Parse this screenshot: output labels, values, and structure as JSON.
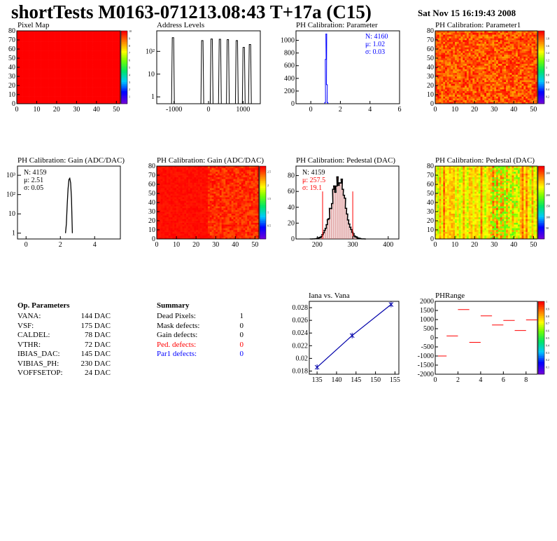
{
  "header": {
    "title": "shortTests M0163-071213.08:43 T+17a (C15)",
    "date": "Sat Nov 15 16:19:43 2008"
  },
  "op_parameters": {
    "title": "Op. Parameters",
    "rows": [
      {
        "name": "VANA:",
        "value": "144 DAC"
      },
      {
        "name": "VSF:",
        "value": "175 DAC"
      },
      {
        "name": "CALDEL:",
        "value": "78 DAC"
      },
      {
        "name": "VTHR:",
        "value": "72 DAC"
      },
      {
        "name": "IBIAS_DAC:",
        "value": "145 DAC"
      },
      {
        "name": "VIBIAS_PH:",
        "value": "230 DAC"
      },
      {
        "name": "VOFFSETOP:",
        "value": "24 DAC"
      }
    ]
  },
  "summary": {
    "title": "Summary",
    "rows": [
      {
        "name": "Dead Pixels:",
        "value": "1",
        "color": "#000000"
      },
      {
        "name": "Mask defects:",
        "value": "0",
        "color": "#000000"
      },
      {
        "name": "Gain defects:",
        "value": "0",
        "color": "#000000"
      },
      {
        "name": "Ped. defects:",
        "value": "0",
        "color": "#ff0000"
      },
      {
        "name": "Par1 defects:",
        "value": "0",
        "color": "#0000ff"
      }
    ]
  },
  "chart_data": [
    {
      "id": "pixel-map",
      "type": "heatmap",
      "title": "Pixel Map",
      "xlim": [
        0,
        52
      ],
      "ylim": [
        0,
        80
      ],
      "xticks": [
        "0",
        "10",
        "20",
        "30",
        "40",
        "50"
      ],
      "yticks": [
        "0",
        "10",
        "20",
        "30",
        "40",
        "50",
        "60",
        "70",
        "80"
      ],
      "fill": "uniform",
      "color": "#ff0000",
      "palette_ticks": [
        "1",
        "2",
        "3",
        "4",
        "5",
        "6",
        "7",
        "8",
        "9",
        "10"
      ],
      "palette_max": 10
    },
    {
      "id": "address-levels",
      "type": "bar",
      "title": "Address Levels",
      "xlim": [
        -1500,
        1500
      ],
      "ylog": true,
      "ylim": [
        0.5,
        800
      ],
      "xticks": [
        {
          "v": -1000,
          "t": "-1000"
        },
        {
          "v": 0,
          "t": "0"
        },
        {
          "v": 1000,
          "t": "1000"
        }
      ],
      "yticks": [
        {
          "v": 1,
          "t": "1"
        },
        {
          "v": 10,
          "t": "10"
        },
        {
          "v": 100,
          "t": "10²"
        }
      ],
      "peaks": [
        {
          "x": -1030,
          "h": 400
        },
        {
          "x": -180,
          "h": 300
        },
        {
          "x": 90,
          "h": 350
        },
        {
          "x": 330,
          "h": 340
        },
        {
          "x": 560,
          "h": 330
        },
        {
          "x": 820,
          "h": 300
        },
        {
          "x": 1020,
          "h": 150
        },
        {
          "x": 1200,
          "h": 200
        }
      ]
    },
    {
      "id": "ph-cal-parameter",
      "type": "bar",
      "title": "PH Calibration: Parameter",
      "xlim": [
        -1,
        6
      ],
      "ylim": [
        0,
        1150
      ],
      "xticks": [
        "0",
        "2",
        "4",
        "6"
      ],
      "yticks": [
        "0",
        "200",
        "400",
        "600",
        "800",
        "1000"
      ],
      "x": [
        0.94,
        0.98,
        1.02,
        1.06,
        1.1
      ],
      "values": [
        20,
        700,
        1100,
        300,
        20
      ],
      "stats": {
        "N": "N: 4160",
        "mu": "μ: 1.02",
        "sigma": "σ: 0.03"
      },
      "color": "#0000ff"
    },
    {
      "id": "ph-cal-parameter1",
      "type": "heatmap",
      "title": "PH Calibration: Parameter1",
      "xlim": [
        0,
        52
      ],
      "ylim": [
        0,
        80
      ],
      "xticks": [
        "0",
        "10",
        "20",
        "30",
        "40",
        "50"
      ],
      "yticks": [
        "0",
        "10",
        "20",
        "30",
        "40",
        "50",
        "60",
        "70",
        "80"
      ],
      "fill": "noisy-orange",
      "palette_ticks": [
        "0.2",
        "0.4",
        "0.6",
        "0.8",
        "1",
        "1.2",
        "1.4",
        "1.6",
        "1.8"
      ],
      "palette_max": 2.0
    },
    {
      "id": "ph-cal-gain",
      "type": "line",
      "title": "PH Calibration: Gain (ADC/DAC)",
      "xlim": [
        -0.5,
        5.5
      ],
      "ylog": true,
      "ylim": [
        0.5,
        3000
      ],
      "xticks": [
        {
          "v": 0,
          "t": "0"
        },
        {
          "v": 2,
          "t": "2"
        },
        {
          "v": 4,
          "t": "4"
        }
      ],
      "yticks": [
        {
          "v": 1,
          "t": "1"
        },
        {
          "v": 10,
          "t": "10"
        },
        {
          "v": 100,
          "t": "10²"
        },
        {
          "v": 1000,
          "t": "10³"
        }
      ],
      "x": [
        2.3,
        2.35,
        2.4,
        2.45,
        2.5,
        2.55,
        2.6,
        2.65,
        2.7
      ],
      "values": [
        1,
        3,
        30,
        200,
        600,
        700,
        400,
        60,
        1
      ],
      "stats": {
        "N": "N: 4159",
        "mu": "μ: 2.51",
        "sigma": "σ: 0.05"
      }
    },
    {
      "id": "ph-cal-gain-map",
      "type": "heatmap",
      "title": "PH Calibration: Gain (ADC/DAC)",
      "xlim": [
        0,
        52
      ],
      "ylim": [
        0,
        80
      ],
      "xticks": [
        "0",
        "10",
        "20",
        "30",
        "40",
        "50"
      ],
      "yticks": [
        "0",
        "10",
        "20",
        "30",
        "40",
        "50",
        "60",
        "70",
        "80"
      ],
      "fill": "mostly-red",
      "palette_ticks": [
        "0.5",
        "1",
        "1.5",
        "2",
        "2.5"
      ],
      "palette_max": 2.7
    },
    {
      "id": "ph-cal-pedestal",
      "type": "bar",
      "title": "PH Calibration: Pedestal (DAC)",
      "xlim": [
        140,
        430
      ],
      "ylim": [
        0,
        92
      ],
      "xticks": [
        "200",
        "300",
        "400"
      ],
      "yticks": [
        "0",
        "20",
        "40",
        "60",
        "80"
      ],
      "mean": 257.5,
      "sigma": 19.1,
      "peak": 76,
      "cut_lines": [
        {
          "x": 215,
          "y": 60
        },
        {
          "x": 300,
          "y": 60
        }
      ],
      "stats": {
        "N": "N: 4159",
        "mu": "μ: 257.5",
        "sigma": "σ: 19.1"
      }
    },
    {
      "id": "ph-cal-pedestal-map",
      "type": "heatmap",
      "title": "PH Calibration: Pedestal (DAC)",
      "xlim": [
        0,
        52
      ],
      "ylim": [
        0,
        80
      ],
      "xticks": [
        "0",
        "10",
        "20",
        "30",
        "40",
        "50"
      ],
      "yticks": [
        "0",
        "10",
        "20",
        "30",
        "40",
        "50",
        "60",
        "70",
        "80"
      ],
      "fill": "yellow-orange",
      "palette_ticks": [
        "50",
        "100",
        "150",
        "200",
        "250",
        "300"
      ],
      "palette_max": 330
    },
    {
      "id": "iana-vs-vana",
      "type": "scatter",
      "title": "Iana vs. Vana",
      "xlim": [
        133,
        156
      ],
      "ylim": [
        0.0175,
        0.029
      ],
      "xticks": [
        "135",
        "140",
        "145",
        "150",
        "155"
      ],
      "yticks": [
        "0.018",
        "0.02",
        "0.022",
        "0.024",
        "0.026",
        "0.028"
      ],
      "x": [
        135,
        144,
        154
      ],
      "values": [
        0.0186,
        0.0236,
        0.0285
      ],
      "color": "#0000aa"
    },
    {
      "id": "ph-range",
      "type": "scatter",
      "title": "PHRange",
      "xlim": [
        0,
        9
      ],
      "ylim": [
        -2000,
        2000
      ],
      "xticks": [
        "0",
        "2",
        "4",
        "6",
        "8"
      ],
      "yticks": [
        "2000",
        "1500",
        "1000",
        "500",
        "0",
        "-500",
        "-1000",
        "-1500",
        "-2000"
      ],
      "x": [
        0,
        1,
        2,
        3,
        4,
        5,
        6,
        7,
        8
      ],
      "values": [
        -1000,
        100,
        1550,
        -250,
        1200,
        700,
        950,
        400,
        980
      ],
      "color": "#ff0000",
      "palette_ticks": [
        "0.1",
        "0.2",
        "0.3",
        "0.4",
        "0.5",
        "0.6",
        "0.7",
        "0.8",
        "0.9",
        "1"
      ],
      "palette_max": 1
    }
  ]
}
